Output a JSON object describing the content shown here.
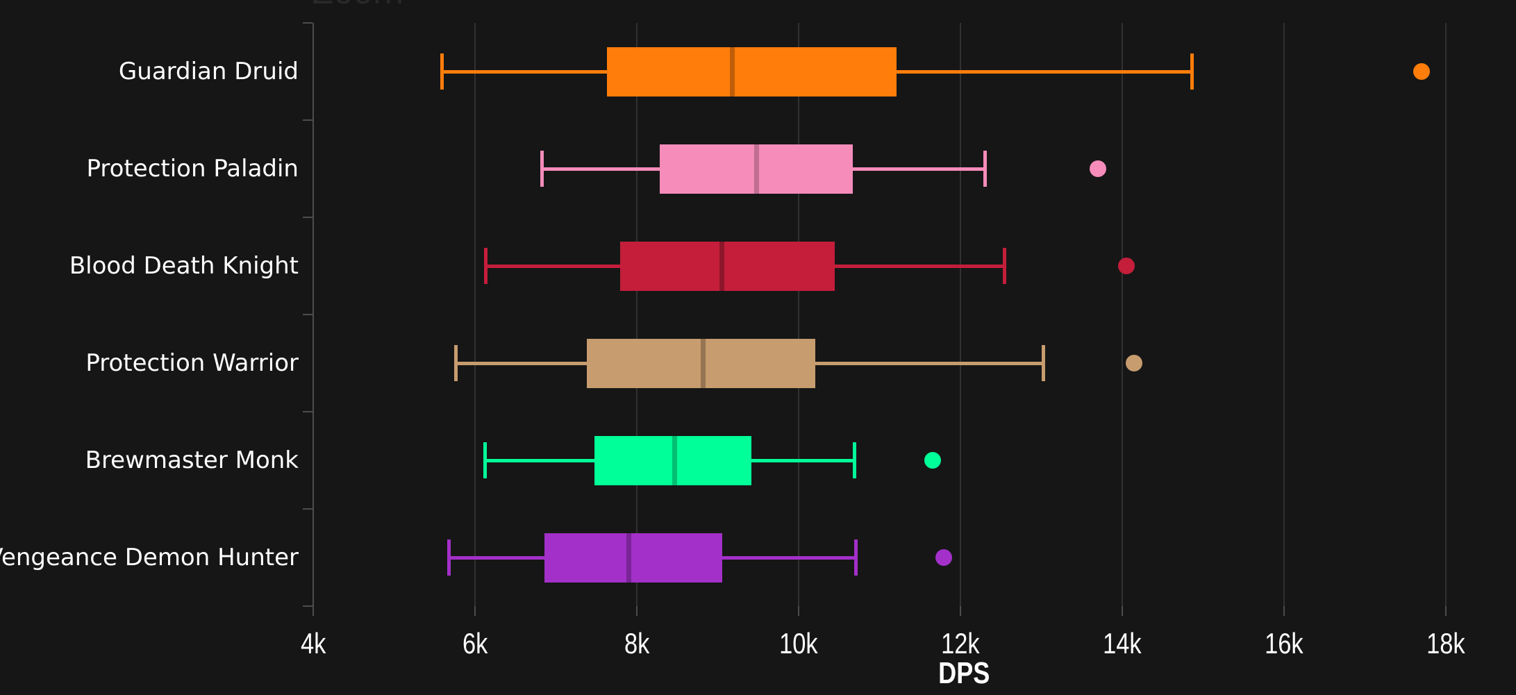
{
  "header": {
    "zoom_label": "Zoom"
  },
  "chart_data": {
    "type": "boxplot",
    "orientation": "horizontal",
    "title": "",
    "xlabel": "DPS",
    "ylabel": "",
    "xlim": [
      4000,
      18600
    ],
    "grid": true,
    "x_ticks": [
      {
        "value": 4000,
        "label": "4k"
      },
      {
        "value": 6000,
        "label": "6k"
      },
      {
        "value": 8000,
        "label": "8k"
      },
      {
        "value": 10000,
        "label": "10k"
      },
      {
        "value": 12000,
        "label": "12k"
      },
      {
        "value": 14000,
        "label": "14k"
      },
      {
        "value": 16000,
        "label": "16k"
      },
      {
        "value": 18000,
        "label": "18k"
      }
    ],
    "categories": [
      "Guardian Druid",
      "Protection Paladin",
      "Blood Death Knight",
      "Protection Warrior",
      "Brewmaster Monk",
      "Vengeance Demon Hunter"
    ],
    "series": [
      {
        "name": "Guardian Druid",
        "color": "#FF7D0A",
        "median_color": "#BF5E08",
        "low": 5590,
        "q1": 7630,
        "median": 9180,
        "q3": 11210,
        "high": 14860,
        "outliers": [
          17700
        ]
      },
      {
        "name": "Protection Paladin",
        "color": "#F58CBA",
        "median_color": "#C06E92",
        "low": 6820,
        "q1": 8280,
        "median": 9480,
        "q3": 10670,
        "high": 12300,
        "outliers": [
          13700
        ]
      },
      {
        "name": "Blood Death Knight",
        "color": "#C41E3B",
        "median_color": "#8E162B",
        "low": 6130,
        "q1": 7790,
        "median": 9050,
        "q3": 10450,
        "high": 12540,
        "outliers": [
          14050
        ]
      },
      {
        "name": "Protection Warrior",
        "color": "#C79C6E",
        "median_color": "#967553",
        "low": 5760,
        "q1": 7380,
        "median": 8820,
        "q3": 10210,
        "high": 13020,
        "outliers": [
          14150
        ]
      },
      {
        "name": "Brewmaster Monk",
        "color": "#00FF98",
        "median_color": "#00BF72",
        "low": 6120,
        "q1": 7480,
        "median": 8470,
        "q3": 9420,
        "high": 10690,
        "outliers": [
          11660
        ]
      },
      {
        "name": "Vengeance Demon Hunter",
        "color": "#A330C9",
        "median_color": "#7A2497",
        "low": 5670,
        "q1": 6860,
        "median": 7900,
        "q3": 9060,
        "high": 10700,
        "outliers": [
          11790
        ]
      }
    ],
    "colors": {
      "background": "#161616",
      "gridline": "#313131",
      "axis": "#4d4d4d",
      "text": "#ffffff",
      "zoom_label_text": "#292929"
    }
  }
}
